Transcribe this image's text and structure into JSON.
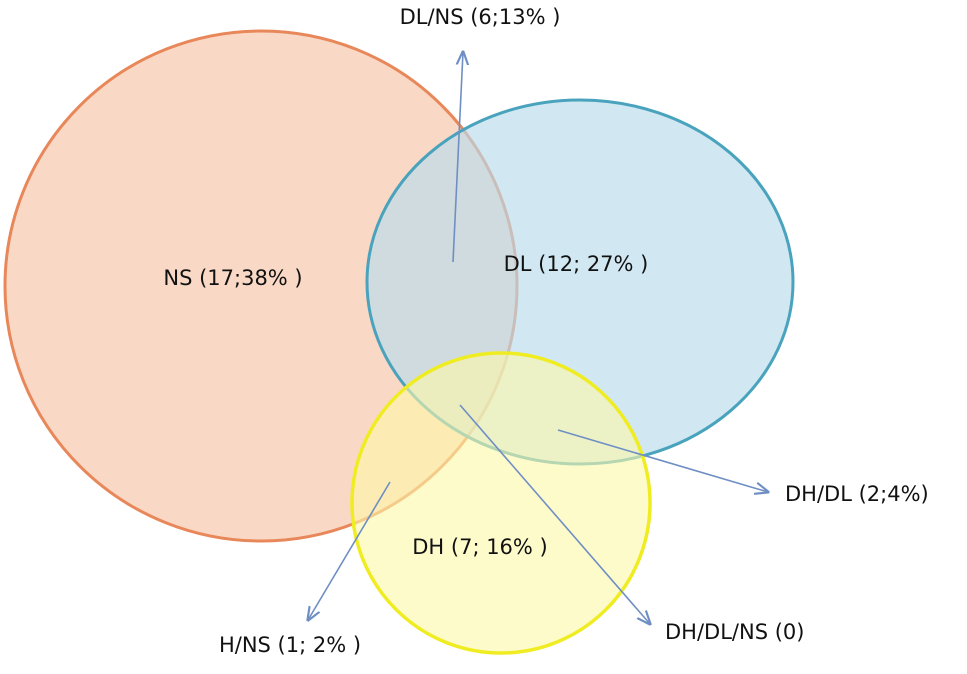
{
  "regions": [
    {
      "label": "NS (17;38% )"
    },
    {
      "label": "DL (12; 27% )"
    },
    {
      "label": "DH (7; 16% )"
    },
    {
      "label": "DL/NS (6;13% )"
    },
    {
      "label": "DH/DL (2;4%)"
    },
    {
      "label": "H/NS (1; 2% )"
    },
    {
      "label": "DH/DL/NS (0)"
    }
  ]
}
